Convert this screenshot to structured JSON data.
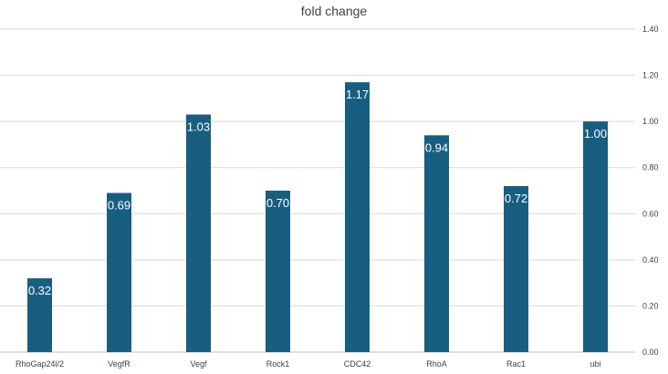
{
  "chart_data": {
    "type": "bar",
    "title": "fold change",
    "xlabel": "",
    "ylabel": "",
    "categories": [
      "RhoGap24l/2",
      "VegfR",
      "Vegf",
      "Rock1",
      "CDC42",
      "RhoA",
      "Rac1",
      "ubi"
    ],
    "values": [
      0.32,
      0.69,
      1.03,
      0.7,
      1.17,
      0.94,
      0.72,
      1.0
    ],
    "data_labels": [
      "0.32",
      "0.69",
      "1.03",
      "0.70",
      "1.17",
      "0.94",
      "0.72",
      "1.00"
    ],
    "ylim": [
      0,
      1.4
    ],
    "yticks": [
      "0.00",
      "0.20",
      "0.40",
      "0.60",
      "0.80",
      "1.00",
      "1.20",
      "1.40"
    ],
    "y_axis_side": "right",
    "grid": true,
    "legend": "none",
    "bar_color": "#185e80",
    "gridline_color": "#d9d9d9",
    "text_color": "#404040"
  }
}
